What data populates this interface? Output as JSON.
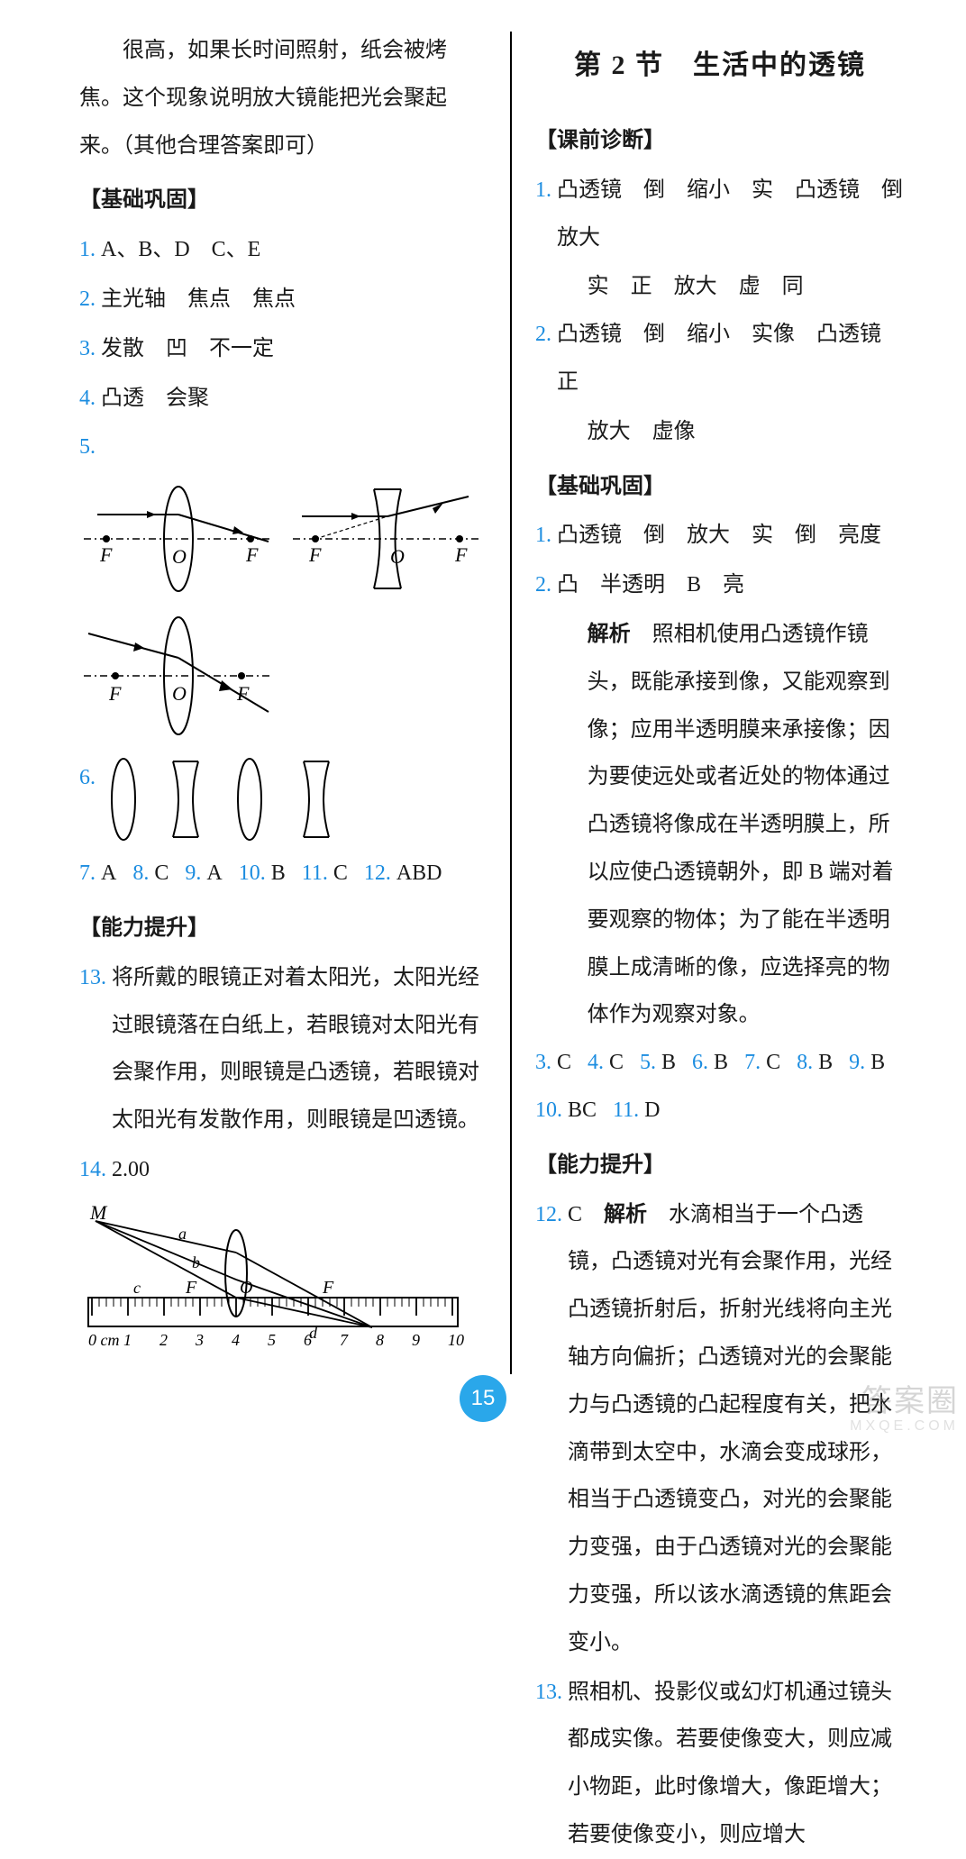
{
  "left": {
    "intro_cont": "很高，如果长时间照射，纸会被烤焦。这个现象说明放大镜能把光会聚起来。（其他合理答案即可）",
    "hdr_jichu": "【基础巩固】",
    "q1": {
      "n": "1.",
      "t": "A、B、D　C、E"
    },
    "q2": {
      "n": "2.",
      "t": "主光轴　焦点　焦点"
    },
    "q3": {
      "n": "3.",
      "t": "发散　凹　不一定"
    },
    "q4": {
      "n": "4.",
      "t": "凸透　会聚"
    },
    "q5": {
      "n": "5."
    },
    "q6": {
      "n": "6."
    },
    "row_ans": [
      {
        "n": "7.",
        "a": "A"
      },
      {
        "n": "8.",
        "a": "C"
      },
      {
        "n": "9.",
        "a": "A"
      },
      {
        "n": "10.",
        "a": "B"
      },
      {
        "n": "11.",
        "a": "C"
      },
      {
        "n": "12.",
        "a": "ABD"
      }
    ],
    "hdr_nengli": "【能力提升】",
    "q13": {
      "n": "13.",
      "t": "将所戴的眼镜正对着太阳光，太阳光经过眼镜落在白纸上，若眼镜对太阳光有会聚作用，则眼镜是凸透镜，若眼镜对太阳光有发散作用，则眼镜是凹透镜。"
    },
    "q14": {
      "n": "14.",
      "t": "2.00"
    },
    "ruler_labels": [
      "0 cm",
      "1",
      "2",
      "3",
      "4",
      "5",
      "6",
      "7",
      "8",
      "9",
      "10"
    ],
    "ruler_letters": {
      "M": "M",
      "a": "a",
      "b": "b",
      "c": "c",
      "F1": "F",
      "O": "O",
      "F2": "F",
      "d": "d"
    }
  },
  "right": {
    "title": "第 2 节　生活中的透镜",
    "hdr_keqian": "【课前诊断】",
    "q1": {
      "n": "1.",
      "t1": "凸透镜　倒　缩小　实　凸透镜　倒　放大",
      "t2": "实　正　放大　虚　同"
    },
    "q2": {
      "n": "2.",
      "t1": "凸透镜　倒　缩小　实像　凸透镜　正",
      "t2": "放大　虚像"
    },
    "hdr_jichu": "【基础巩固】",
    "b1": {
      "n": "1.",
      "t": "凸透镜　倒　放大　实　倒　亮度"
    },
    "b2": {
      "n": "2.",
      "t": "凸　半透明　B　亮",
      "jiexi_label": "解析",
      "jiexi": "照相机使用凸透镜作镜头，既能承接到像，又能观察到像；应用半透明膜来承接像；因为要使远处或者近处的物体通过凸透镜将像成在半透明膜上，所以应使凸透镜朝外，即 B 端对着要观察的物体；为了能在半透明膜上成清晰的像，应选择亮的物体作为观察对象。"
    },
    "row_ans1": [
      {
        "n": "3.",
        "a": "C"
      },
      {
        "n": "4.",
        "a": "C"
      },
      {
        "n": "5.",
        "a": "B"
      },
      {
        "n": "6.",
        "a": "B"
      },
      {
        "n": "7.",
        "a": "C"
      },
      {
        "n": "8.",
        "a": "B"
      },
      {
        "n": "9.",
        "a": "B"
      }
    ],
    "row_ans2": [
      {
        "n": "10.",
        "a": "BC"
      },
      {
        "n": "11.",
        "a": "D"
      }
    ],
    "hdr_nengli": "【能力提升】",
    "q12": {
      "n": "12.",
      "a": "C",
      "jiexi_label": "解析",
      "t": "水滴相当于一个凸透镜，凸透镜对光有会聚作用，光经凸透镜折射后，折射光线将向主光轴方向偏折；凸透镜对光的会聚能力与凸透镜的凸起程度有关，把水滴带到太空中，水滴会变成球形，相当于凸透镜变凸，对光的会聚能力变强，由于凸透镜对光的会聚能力变强，所以该水滴透镜的焦距会变小。"
    },
    "q13": {
      "n": "13.",
      "t": "照相机、投影仪或幻灯机通过镜头都成实像。若要使像变大，则应减小物距，此时像增大，像距增大；若要使像变小，则应增大"
    }
  },
  "page_number": "15",
  "watermark": {
    "big": "答案圈",
    "small": "MXQE.COM"
  },
  "colors": {
    "num": "#1c8de0",
    "circle": "#2aa7ea"
  }
}
